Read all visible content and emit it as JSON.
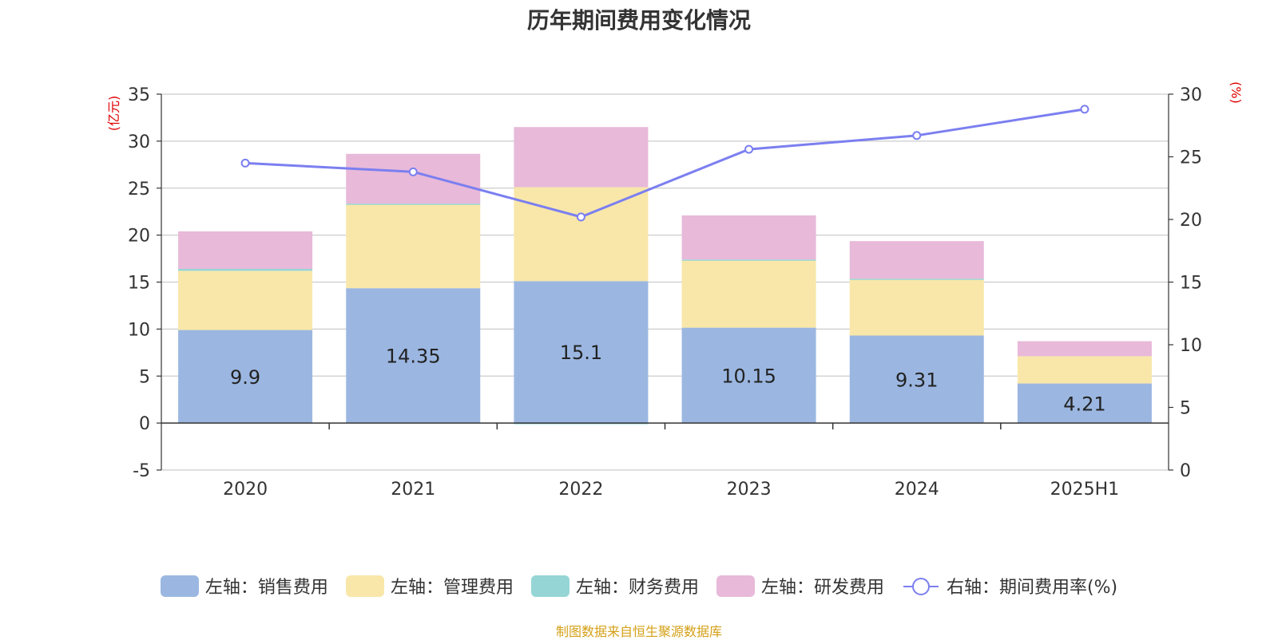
{
  "chart_data": {
    "type": "bar",
    "title": "历年期间费用变化情况",
    "categories": [
      "2020",
      "2021",
      "2022",
      "2023",
      "2024",
      "2025H1"
    ],
    "left_axis": {
      "unit_label": "(亿元)",
      "ylim": [
        -5,
        35
      ],
      "ticks": [
        -5,
        0,
        5,
        10,
        15,
        20,
        25,
        30,
        35
      ]
    },
    "right_axis": {
      "unit_label": "(%)",
      "ylim": [
        0,
        30
      ],
      "ticks": [
        0,
        5,
        10,
        15,
        20,
        25,
        30
      ]
    },
    "stacked": true,
    "grid": true,
    "legend_position": "bottom",
    "series": [
      {
        "name": "左轴：销售费用",
        "axis": "left",
        "color": "#9bb7e1",
        "values": [
          9.9,
          14.35,
          15.1,
          10.15,
          9.31,
          4.21
        ],
        "labels": [
          "9.9",
          "14.35",
          "15.1",
          "10.15",
          "9.31",
          "4.21"
        ]
      },
      {
        "name": "左轴：管理费用",
        "axis": "left",
        "color": "#f8e7a9",
        "values": [
          6.3,
          8.9,
          10.0,
          7.2,
          6.0,
          2.9
        ]
      },
      {
        "name": "左轴：财务费用",
        "axis": "left",
        "color": "#95d5d5",
        "values": [
          0.2,
          0.1,
          -0.1,
          0.05,
          0.05,
          0.0
        ]
      },
      {
        "name": "左轴：研发费用",
        "axis": "left",
        "color": "#e8b9d9",
        "values": [
          4.0,
          5.3,
          6.4,
          4.7,
          4.0,
          1.6
        ]
      },
      {
        "name": "右轴：期间费用率(%)",
        "axis": "right",
        "type": "line",
        "color": "#7b7ff0",
        "values": [
          24.5,
          23.8,
          20.2,
          25.6,
          26.7,
          28.8
        ]
      }
    ]
  },
  "source_note": "制图数据来自恒生聚源数据库"
}
